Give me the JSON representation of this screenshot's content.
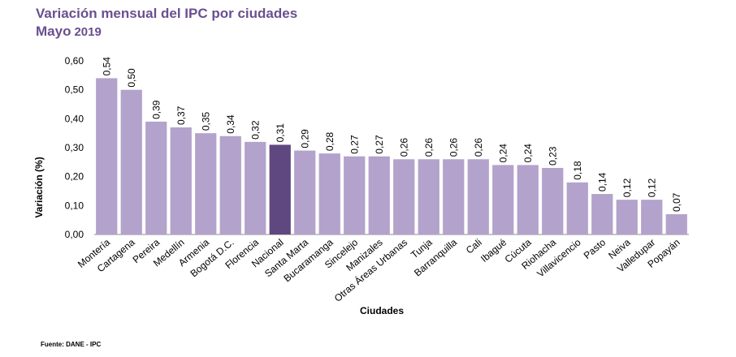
{
  "title": "Variación mensual del IPC por ciudades",
  "subtitle_month": "Mayo",
  "subtitle_year": "2019",
  "source": "Fuente: DANE - IPC",
  "colors": {
    "bar": "#b3a2cc",
    "highlight": "#5f4780",
    "title": "#6a4f8f"
  },
  "chart_data": {
    "type": "bar",
    "ylabel": "Variación (%)",
    "xlabel": "Ciudades",
    "ylim": [
      0,
      0.6
    ],
    "yticks": [
      "0,00",
      "0,10",
      "0,20",
      "0,30",
      "0,40",
      "0,50",
      "0,60"
    ],
    "grid": false,
    "highlight_category": "Nacional",
    "categories": [
      "Montería",
      "Cartagena",
      "Pereira",
      "Medellín",
      "Armenia",
      "Bogotá D.C.",
      "Florencia",
      "Nacional",
      "Santa Marta",
      "Bucaramanga",
      "Sincelejo",
      "Manizales",
      "Otras Áreas Urbanas",
      "Tunja",
      "Barranquilla",
      "Cali",
      "Ibagué",
      "Cúcuta",
      "Riohacha",
      "Villavicencio",
      "Pasto",
      "Neiva",
      "Valledupar",
      "Popayán"
    ],
    "values": [
      0.54,
      0.5,
      0.39,
      0.37,
      0.35,
      0.34,
      0.32,
      0.31,
      0.29,
      0.28,
      0.27,
      0.27,
      0.26,
      0.26,
      0.26,
      0.26,
      0.24,
      0.24,
      0.23,
      0.18,
      0.14,
      0.12,
      0.12,
      0.07
    ],
    "value_labels": [
      "0,54",
      "0,50",
      "0,39",
      "0,37",
      "0,35",
      "0,34",
      "0,32",
      "0,31",
      "0,29",
      "0,28",
      "0,27",
      "0,27",
      "0,26",
      "0,26",
      "0,26",
      "0,26",
      "0,24",
      "0,24",
      "0,23",
      "0,18",
      "0,14",
      "0,12",
      "0,12",
      "0,07"
    ]
  }
}
